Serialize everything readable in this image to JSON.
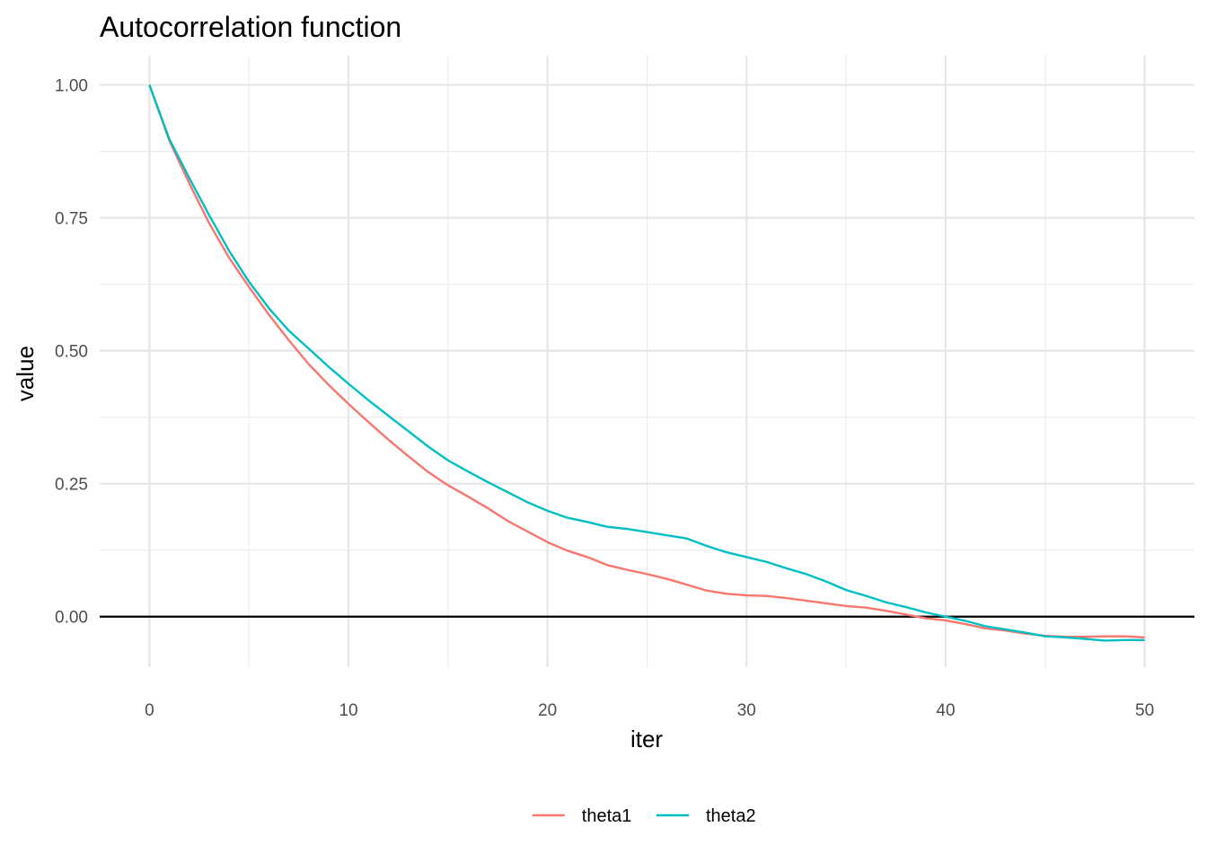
{
  "chart_data": {
    "type": "line",
    "title": "Autocorrelation function",
    "xlabel": "iter",
    "ylabel": "value",
    "xlim": [
      -2.5,
      52.5
    ],
    "ylim": [
      -0.095,
      1.055
    ],
    "x_ticks": [
      "0",
      "10",
      "20",
      "30",
      "40",
      "50"
    ],
    "y_ticks": [
      "0.00",
      "0.25",
      "0.50",
      "0.75",
      "1.00"
    ],
    "reference_line_y": 0,
    "grid": true,
    "legend_position": "bottom",
    "x": [
      0,
      1,
      2,
      3,
      4,
      5,
      6,
      7,
      8,
      9,
      10,
      11,
      12,
      13,
      14,
      15,
      16,
      17,
      18,
      19,
      20,
      21,
      22,
      23,
      24,
      25,
      26,
      27,
      28,
      29,
      30,
      31,
      32,
      33,
      34,
      35,
      36,
      37,
      38,
      39,
      40,
      41,
      42,
      43,
      44,
      45,
      46,
      47,
      48,
      49,
      50
    ],
    "series": [
      {
        "name": "theta1",
        "color": "#F8766D",
        "values": [
          1.0,
          0.895,
          0.815,
          0.74,
          0.675,
          0.62,
          0.568,
          0.52,
          0.475,
          0.436,
          0.4,
          0.366,
          0.333,
          0.302,
          0.272,
          0.247,
          0.226,
          0.204,
          0.18,
          0.16,
          0.14,
          0.124,
          0.112,
          0.097,
          0.088,
          0.08,
          0.071,
          0.06,
          0.049,
          0.043,
          0.04,
          0.039,
          0.035,
          0.03,
          0.025,
          0.02,
          0.017,
          0.011,
          0.004,
          -0.003,
          -0.007,
          -0.014,
          -0.022,
          -0.026,
          -0.032,
          -0.036,
          -0.038,
          -0.038,
          -0.037,
          -0.037,
          -0.039
        ]
      },
      {
        "name": "theta2",
        "color": "#00BFC4",
        "values": [
          1.0,
          0.898,
          0.825,
          0.755,
          0.688,
          0.63,
          0.58,
          0.538,
          0.504,
          0.47,
          0.438,
          0.407,
          0.378,
          0.349,
          0.32,
          0.294,
          0.273,
          0.253,
          0.234,
          0.215,
          0.199,
          0.186,
          0.178,
          0.169,
          0.165,
          0.159,
          0.153,
          0.147,
          0.133,
          0.121,
          0.112,
          0.103,
          0.091,
          0.08,
          0.066,
          0.05,
          0.039,
          0.027,
          0.018,
          0.008,
          0.0,
          -0.008,
          -0.018,
          -0.024,
          -0.03,
          -0.037,
          -0.039,
          -0.042,
          -0.045,
          -0.044,
          -0.044
        ]
      }
    ]
  }
}
